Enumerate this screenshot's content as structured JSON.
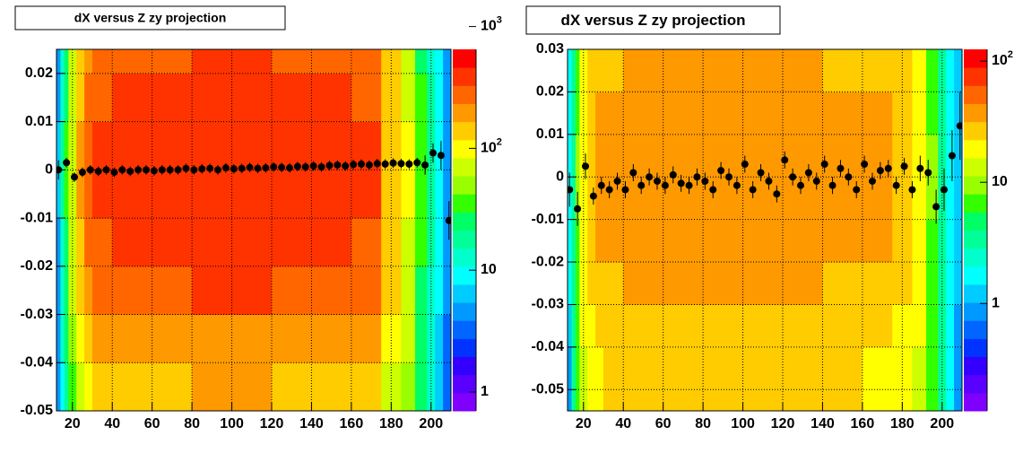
{
  "chart_data": [
    {
      "type": "heatmap",
      "title": "dX  versus Z zy projection",
      "xlim": [
        12,
        210
      ],
      "xticks": [
        20,
        40,
        60,
        80,
        100,
        120,
        140,
        160,
        180,
        200
      ],
      "ylim": [
        -0.05,
        0.025
      ],
      "yticks": [
        -0.05,
        -0.04,
        -0.03,
        -0.02,
        -0.01,
        0,
        0.01,
        0.02
      ],
      "zlim": [
        0.7,
        650
      ],
      "log_z": true,
      "grid": true,
      "zticks": [
        {
          "value": 1,
          "label": "1"
        },
        {
          "value": 10,
          "label": "10"
        },
        {
          "value": 100,
          "label": "10",
          "exponent": "2"
        },
        {
          "value": 1000,
          "label": "10",
          "exponent": "3"
        }
      ],
      "palette": [
        "#7f00ff",
        "#5a00ff",
        "#3300ff",
        "#0033ff",
        "#0066ff",
        "#0099ff",
        "#00ccff",
        "#00ffff",
        "#00ffcc",
        "#00ff99",
        "#00ff66",
        "#33ff00",
        "#99ff00",
        "#ccff00",
        "#ffff00",
        "#ffcc00",
        "#ff9900",
        "#ff6600",
        "#ff3300",
        "#ff0000"
      ],
      "xbins": [
        12,
        14,
        16,
        18,
        22,
        26,
        30,
        40,
        60,
        80,
        100,
        120,
        140,
        160,
        175,
        185,
        192,
        198,
        202,
        206,
        210
      ],
      "ybins": [
        -0.05,
        -0.04,
        -0.03,
        -0.02,
        -0.01,
        0,
        0.01,
        0.02,
        0.025
      ],
      "z": [
        [
          4,
          10,
          20,
          40,
          80,
          100,
          120,
          140,
          150,
          170,
          170,
          150,
          140,
          120,
          80,
          50,
          25,
          12,
          6,
          3
        ],
        [
          4,
          12,
          25,
          50,
          110,
          150,
          180,
          200,
          220,
          230,
          230,
          220,
          200,
          180,
          100,
          60,
          28,
          14,
          7,
          3
        ],
        [
          5,
          14,
          28,
          60,
          140,
          200,
          250,
          300,
          320,
          330,
          330,
          320,
          300,
          250,
          120,
          70,
          30,
          15,
          8,
          4
        ],
        [
          5,
          15,
          30,
          70,
          160,
          250,
          320,
          380,
          400,
          410,
          410,
          400,
          380,
          320,
          140,
          80,
          32,
          16,
          8,
          4
        ],
        [
          6,
          16,
          32,
          80,
          180,
          280,
          360,
          420,
          450,
          460,
          460,
          450,
          420,
          360,
          160,
          90,
          35,
          18,
          9,
          4
        ],
        [
          6,
          16,
          32,
          80,
          180,
          280,
          360,
          420,
          450,
          460,
          460,
          450,
          420,
          360,
          160,
          90,
          35,
          18,
          9,
          4
        ],
        [
          5,
          15,
          30,
          70,
          160,
          250,
          320,
          380,
          400,
          410,
          410,
          400,
          380,
          320,
          140,
          80,
          32,
          16,
          8,
          4
        ],
        [
          5,
          14,
          28,
          60,
          140,
          200,
          260,
          300,
          320,
          330,
          330,
          320,
          300,
          260,
          120,
          70,
          30,
          15,
          8,
          4
        ]
      ],
      "profile": {
        "color": "#000000",
        "x": [
          13,
          17,
          21,
          25,
          29,
          33,
          37,
          41,
          45,
          49,
          53,
          57,
          61,
          65,
          69,
          73,
          77,
          81,
          85,
          89,
          93,
          97,
          101,
          105,
          109,
          113,
          117,
          121,
          125,
          129,
          133,
          137,
          141,
          145,
          149,
          153,
          157,
          161,
          165,
          169,
          173,
          177,
          181,
          185,
          189,
          193,
          197,
          201,
          205,
          209
        ],
        "y": [
          0.0,
          0.0015,
          -0.0015,
          -0.0005,
          0.0,
          -0.0003,
          0.0,
          -0.0005,
          0.0,
          -0.0003,
          0.0,
          0.0,
          -0.0002,
          0.0,
          0.0,
          0.0,
          0.0003,
          0.0,
          0.0002,
          0.0003,
          0.0,
          0.0004,
          0.0002,
          0.0003,
          0.0005,
          0.0003,
          0.0004,
          0.0006,
          0.0005,
          0.0004,
          0.0007,
          0.0006,
          0.0008,
          0.0006,
          0.0009,
          0.001,
          0.0008,
          0.0011,
          0.0012,
          0.001,
          0.0013,
          0.0012,
          0.0014,
          0.0013,
          0.0012,
          0.0015,
          0.001,
          0.0035,
          0.003,
          -0.0105
        ],
        "err": [
          0.002,
          0.001,
          0.001,
          0.001,
          0.001,
          0.001,
          0.001,
          0.001,
          0.001,
          0.001,
          0.001,
          0.001,
          0.001,
          0.001,
          0.001,
          0.001,
          0.001,
          0.001,
          0.001,
          0.001,
          0.001,
          0.001,
          0.001,
          0.001,
          0.001,
          0.001,
          0.001,
          0.001,
          0.001,
          0.001,
          0.001,
          0.001,
          0.001,
          0.001,
          0.001,
          0.001,
          0.001,
          0.001,
          0.001,
          0.001,
          0.001,
          0.001,
          0.001,
          0.001,
          0.001,
          0.001,
          0.002,
          0.002,
          0.003,
          0.004
        ]
      }
    },
    {
      "type": "heatmap",
      "title": "dX  versus Z zy projection",
      "xlim": [
        12,
        210
      ],
      "xticks": [
        20,
        40,
        60,
        80,
        100,
        120,
        140,
        160,
        180,
        200
      ],
      "ylim": [
        -0.055,
        0.03
      ],
      "yticks": [
        -0.05,
        -0.04,
        -0.03,
        -0.02,
        -0.01,
        0,
        0.01,
        0.02,
        0.03
      ],
      "zlim": [
        0.13,
        125
      ],
      "log_z": true,
      "grid": true,
      "zticks": [
        {
          "value": 1,
          "label": "1"
        },
        {
          "value": 10,
          "label": "10"
        },
        {
          "value": 100,
          "label": "10",
          "exponent": "2"
        }
      ],
      "palette": [
        "#7f00ff",
        "#5a00ff",
        "#3300ff",
        "#0033ff",
        "#0066ff",
        "#0099ff",
        "#00ccff",
        "#00ffff",
        "#00ffcc",
        "#00ff99",
        "#00ff66",
        "#33ff00",
        "#99ff00",
        "#ccff00",
        "#ffff00",
        "#ffcc00",
        "#ff9900",
        "#ff6600",
        "#ff3300",
        "#ff0000"
      ],
      "xbins": [
        12,
        14,
        16,
        18,
        22,
        26,
        30,
        40,
        60,
        80,
        100,
        120,
        140,
        160,
        175,
        185,
        192,
        198,
        202,
        206,
        210
      ],
      "ybins": [
        -0.055,
        -0.04,
        -0.03,
        -0.02,
        -0.01,
        0,
        0.01,
        0.02,
        0.03
      ],
      "z": [
        [
          1,
          3,
          6,
          14,
          20,
          22,
          24,
          25,
          26,
          25,
          25,
          24,
          24,
          22,
          20,
          14,
          6,
          3,
          1.5,
          1
        ],
        [
          1.2,
          3.5,
          7,
          16,
          22,
          25,
          27,
          28,
          30,
          29,
          29,
          28,
          27,
          25,
          22,
          16,
          7,
          3.5,
          1.8,
          1
        ],
        [
          1.5,
          4,
          8,
          18,
          25,
          28,
          30,
          32,
          34,
          33,
          33,
          32,
          31,
          30,
          25,
          18,
          8,
          4,
          2,
          1.2
        ],
        [
          1.5,
          4,
          8,
          20,
          28,
          32,
          35,
          38,
          40,
          39,
          39,
          38,
          36,
          34,
          28,
          20,
          8,
          4,
          2,
          1.2
        ],
        [
          1.5,
          4,
          9,
          20,
          30,
          35,
          38,
          42,
          44,
          43,
          43,
          42,
          40,
          36,
          30,
          20,
          9,
          4,
          2,
          1.2
        ],
        [
          1.5,
          4,
          9,
          20,
          30,
          35,
          38,
          42,
          44,
          43,
          43,
          42,
          40,
          36,
          30,
          20,
          9,
          4,
          2,
          1.2
        ],
        [
          1.5,
          4,
          8,
          20,
          28,
          32,
          35,
          38,
          40,
          39,
          39,
          38,
          36,
          34,
          28,
          20,
          8,
          4,
          2,
          1.2
        ],
        [
          1.5,
          4,
          8,
          18,
          25,
          28,
          30,
          32,
          34,
          33,
          33,
          32,
          31,
          30,
          25,
          18,
          8,
          4,
          2,
          1.2
        ]
      ],
      "profile": {
        "color": "#000000",
        "x": [
          13,
          17,
          21,
          25,
          29,
          33,
          37,
          41,
          45,
          49,
          53,
          57,
          61,
          65,
          69,
          73,
          77,
          81,
          85,
          89,
          93,
          97,
          101,
          105,
          109,
          113,
          117,
          121,
          125,
          129,
          133,
          137,
          141,
          145,
          149,
          153,
          157,
          161,
          165,
          169,
          173,
          177,
          181,
          185,
          189,
          193,
          197,
          201,
          205,
          209
        ],
        "y": [
          -0.003,
          -0.0075,
          0.0025,
          -0.0045,
          -0.002,
          -0.003,
          -0.001,
          -0.003,
          0.001,
          -0.002,
          0.0,
          -0.001,
          -0.002,
          0.0005,
          -0.0015,
          -0.002,
          0.0,
          -0.001,
          -0.003,
          0.0015,
          0.0,
          -0.002,
          0.003,
          -0.003,
          0.001,
          -0.001,
          -0.004,
          0.004,
          0.0,
          -0.002,
          0.001,
          -0.001,
          0.003,
          -0.002,
          0.002,
          0.0,
          -0.003,
          0.003,
          -0.001,
          0.0015,
          0.002,
          -0.002,
          0.0025,
          -0.003,
          0.002,
          0.001,
          -0.007,
          -0.003,
          0.005,
          0.012
        ],
        "err": [
          0.004,
          0.004,
          0.003,
          0.002,
          0.002,
          0.002,
          0.002,
          0.002,
          0.002,
          0.002,
          0.002,
          0.002,
          0.002,
          0.002,
          0.002,
          0.002,
          0.002,
          0.002,
          0.002,
          0.002,
          0.002,
          0.002,
          0.002,
          0.002,
          0.002,
          0.002,
          0.002,
          0.002,
          0.002,
          0.002,
          0.002,
          0.002,
          0.002,
          0.002,
          0.002,
          0.002,
          0.002,
          0.002,
          0.002,
          0.002,
          0.002,
          0.002,
          0.002,
          0.002,
          0.003,
          0.003,
          0.004,
          0.005,
          0.006,
          0.008
        ]
      }
    }
  ]
}
